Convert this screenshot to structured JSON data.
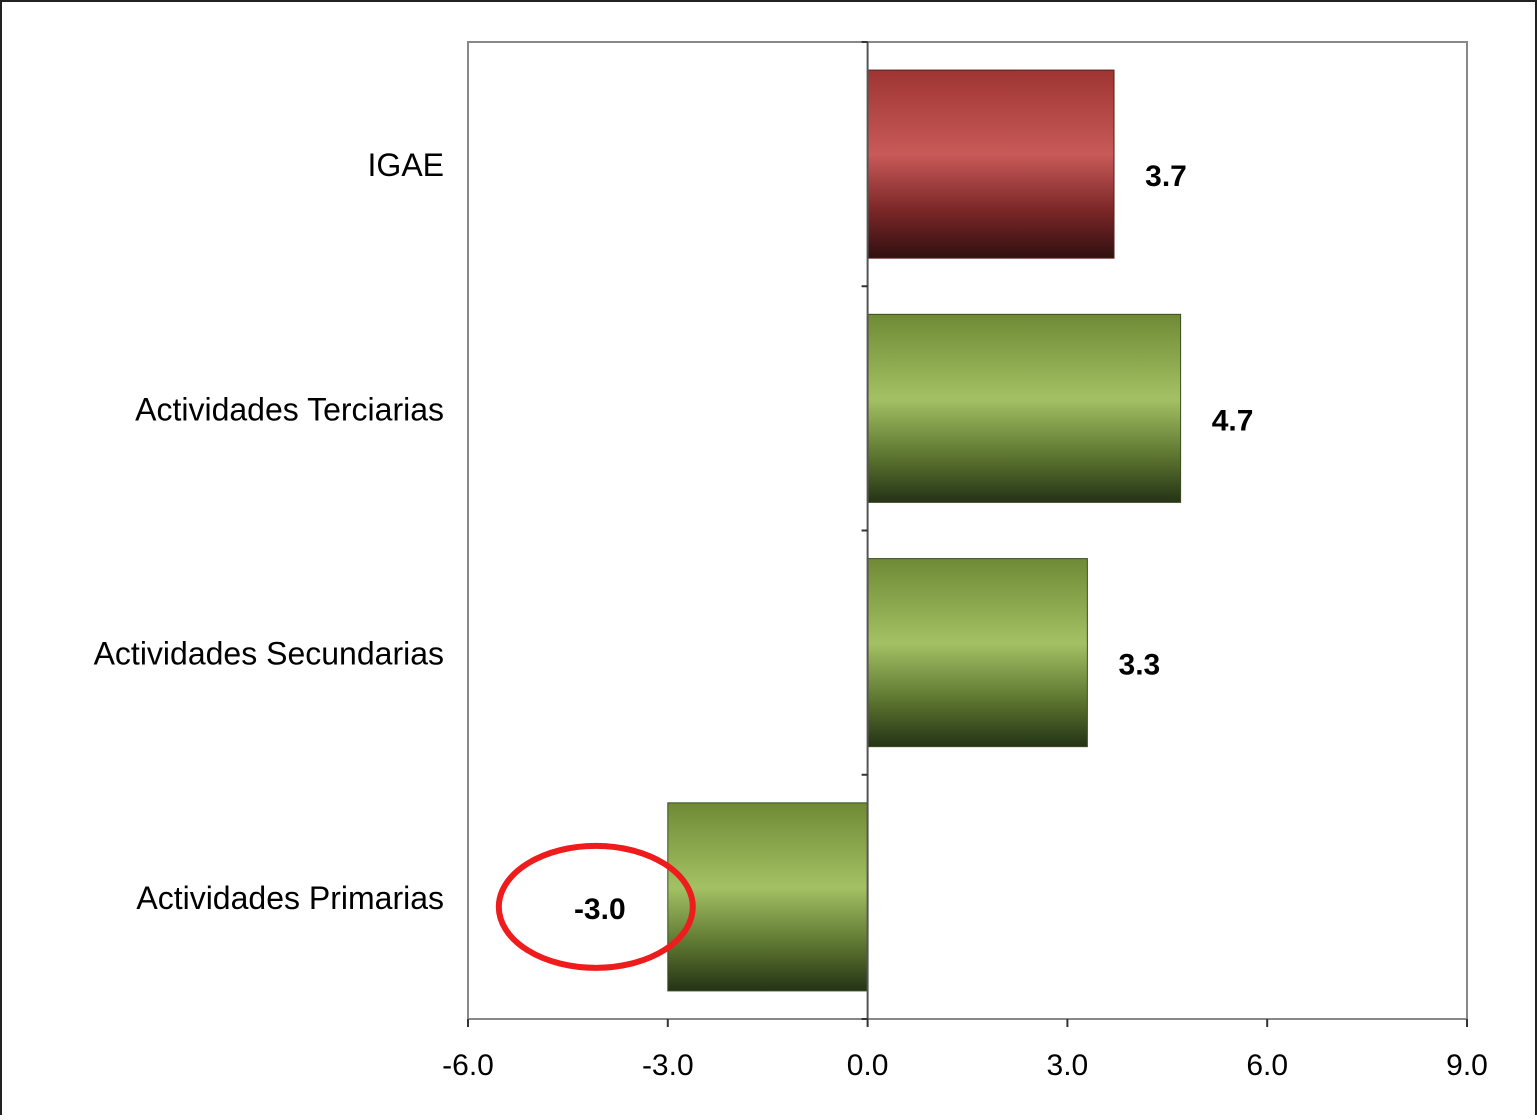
{
  "chart_data": {
    "type": "bar",
    "orientation": "horizontal",
    "categories": [
      "IGAE",
      "Actividades Terciarias",
      "Actividades Secundarias",
      "Actividades Primarias"
    ],
    "values": [
      3.7,
      4.7,
      3.3,
      -3.0
    ],
    "data_labels": [
      "3.7",
      "4.7",
      "3.3",
      "-3.0"
    ],
    "x_ticks": [
      -6.0,
      -3.0,
      0.0,
      3.0,
      6.0,
      9.0
    ],
    "x_tick_labels": [
      "-6.0",
      "-3.0",
      "0.0",
      "3.0",
      "6.0",
      "9.0"
    ],
    "xlim": [
      -6.0,
      9.0
    ],
    "grid": false,
    "legend": "none",
    "title": "",
    "xlabel": "",
    "ylabel": "",
    "highlight": {
      "category": "Actividades Primarias",
      "shape": "ellipse",
      "color": "#ee1c1c"
    },
    "colors": {
      "IGAE": "#c0504d",
      "Actividades Terciarias": "#9bbb59",
      "Actividades Secundarias": "#9bbb59",
      "Actividades Primarias": "#9bbb59",
      "axis": "#888888",
      "frame": "#222222"
    }
  }
}
